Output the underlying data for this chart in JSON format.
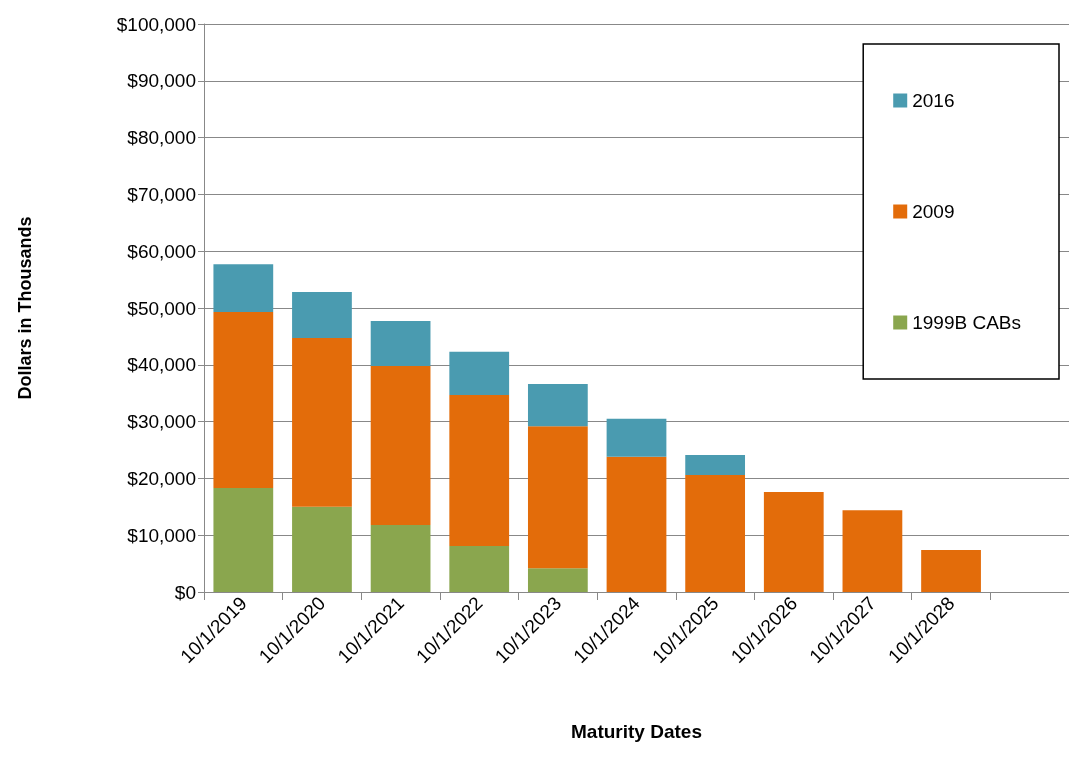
{
  "chart_data": {
    "type": "bar",
    "stacked": true,
    "xlabel": "Maturity Dates",
    "ylabel": "Dollars in Thousands",
    "categories": [
      "10/1/2019",
      "10/1/2020",
      "10/1/2021",
      "10/1/2022",
      "10/1/2023",
      "10/1/2024",
      "10/1/2025",
      "10/1/2026",
      "10/1/2027",
      "10/1/2028",
      null
    ],
    "series": [
      {
        "name": "1999B CABs",
        "color": "#8aa64e",
        "values": [
          18300,
          15000,
          11800,
          8100,
          4200,
          null,
          null,
          null,
          null,
          null,
          null
        ]
      },
      {
        "name": "2009",
        "color": "#e36c0a",
        "values": [
          31000,
          29700,
          28000,
          26600,
          25000,
          23800,
          20600,
          17600,
          14400,
          7400,
          null
        ]
      },
      {
        "name": "2016",
        "color": "#4a9bb0",
        "values": [
          8400,
          8100,
          7900,
          7600,
          7400,
          6700,
          3500,
          null,
          null,
          null,
          null
        ]
      }
    ],
    "ylim": [
      0,
      100000
    ],
    "yticks": [
      {
        "value": 0,
        "label": "$0"
      },
      {
        "value": 10000,
        "label": "$10,000"
      },
      {
        "value": 20000,
        "label": "$20,000"
      },
      {
        "value": 30000,
        "label": "$30,000"
      },
      {
        "value": 40000,
        "label": "$40,000"
      },
      {
        "value": 50000,
        "label": "$50,000"
      },
      {
        "value": 60000,
        "label": "$60,000"
      },
      {
        "value": 70000,
        "label": "$70,000"
      },
      {
        "value": 80000,
        "label": "$80,000"
      },
      {
        "value": 90000,
        "label": "$90,000"
      },
      {
        "value": 100000,
        "label": "$100,000"
      }
    ],
    "grid": "y",
    "legend": "top right"
  }
}
